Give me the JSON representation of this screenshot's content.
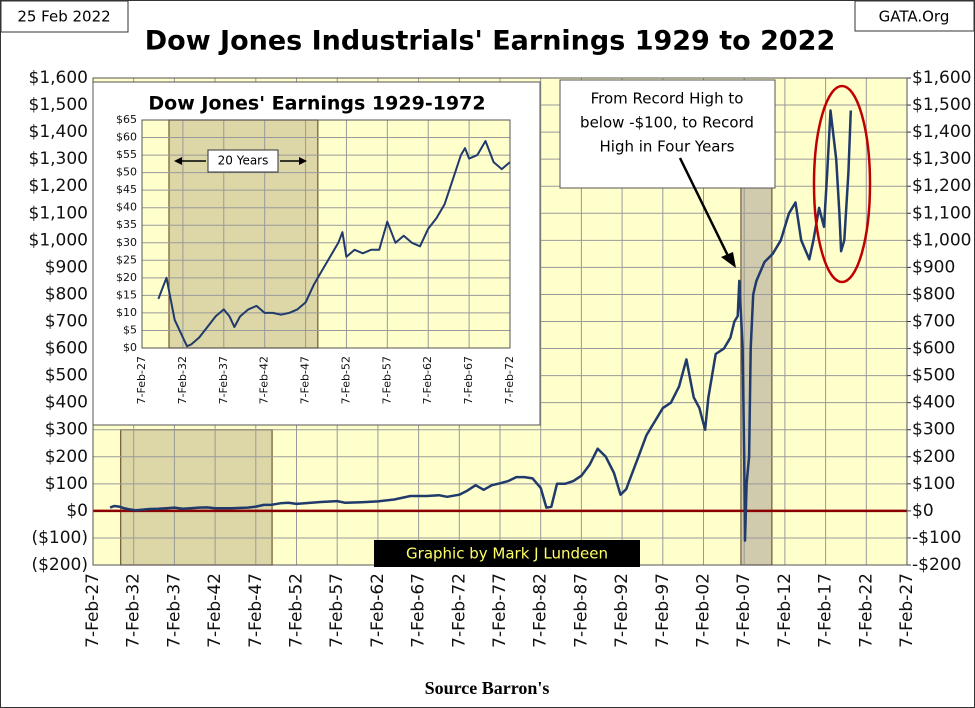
{
  "header": {
    "date": "25 Feb 2022",
    "site": "GATA.Org"
  },
  "footer": {
    "credit": "Graphic by Mark J Lundeen",
    "source": "Source Barron's"
  },
  "chart_data": [
    {
      "type": "line",
      "title": "Dow Jones Industrials' Earnings 1929 to 2022",
      "annotation": [
        "From Record High to",
        "below -$100, to Record",
        "High in Four Years"
      ],
      "x": [
        1929.1,
        1929.6,
        1930.2,
        1930.8,
        1931.5,
        1932.3,
        1933,
        1934,
        1935,
        1936,
        1937,
        1938,
        1939,
        1940,
        1941,
        1942,
        1944,
        1946,
        1947,
        1948,
        1949,
        1950,
        1951,
        1952,
        1953,
        1955,
        1957,
        1958,
        1960,
        1962,
        1964,
        1966,
        1968,
        1969.5,
        1970.5,
        1972,
        1973,
        1974,
        1975,
        1976,
        1977,
        1978,
        1979,
        1980,
        1981,
        1982,
        1982.7,
        1983.3,
        1984,
        1985,
        1986,
        1987,
        1988,
        1989,
        1990,
        1991,
        1991.8,
        1992.5,
        1993,
        1994,
        1995,
        1996,
        1997,
        1998,
        1999,
        1999.9,
        2000.8,
        2001.5,
        2002.2,
        2002.6,
        2003.5,
        2004.5,
        2005.3,
        2005.8,
        2006.2,
        2006.4,
        2006.8,
        2007.0,
        2007.1,
        2007.3,
        2007.6,
        2007.8,
        2008.1,
        2008.5,
        2009.5,
        2010.5,
        2011.5,
        2012.5,
        2013.3,
        2014,
        2015,
        2015.5,
        2016.2,
        2016.8,
        2017.2,
        2017.6,
        2018.3,
        2018.7,
        2018.9,
        2019.3,
        2019.8,
        2020.1
      ],
      "series": [
        {
          "color": "#1f3a6b",
          "values": [
            12,
            18,
            16,
            10,
            6,
            2,
            4,
            7,
            8,
            10,
            12,
            8,
            10,
            12,
            13,
            10,
            10,
            12,
            16,
            22,
            23,
            28,
            30,
            26,
            28,
            33,
            36,
            30,
            32,
            35,
            42,
            55,
            55,
            58,
            52,
            60,
            75,
            95,
            78,
            95,
            102,
            110,
            125,
            125,
            120,
            85,
            12,
            15,
            100,
            100,
            110,
            130,
            170,
            230,
            200,
            140,
            60,
            80,
            120,
            200,
            280,
            330,
            380,
            400,
            460,
            560,
            420,
            380,
            300,
            420,
            580,
            600,
            640,
            700,
            720,
            850,
            600,
            200,
            -110,
            100,
            200,
            600,
            800,
            850,
            920,
            950,
            1000,
            1100,
            1140,
            1000,
            930,
            1000,
            1120,
            1050,
            1250,
            1480,
            1300,
            1100,
            960,
            1000,
            1250,
            1480
          ]
        }
      ],
      "xlim": [
        1927,
        2027
      ],
      "xticks": [
        {
          "value": 1927,
          "label": "7-Feb-27"
        },
        {
          "value": 1932,
          "label": "7-Feb-32"
        },
        {
          "value": 1937,
          "label": "7-Feb-37"
        },
        {
          "value": 1942,
          "label": "7-Feb-42"
        },
        {
          "value": 1947,
          "label": "7-Feb-47"
        },
        {
          "value": 1952,
          "label": "7-Feb-52"
        },
        {
          "value": 1957,
          "label": "7-Feb-57"
        },
        {
          "value": 1962,
          "label": "7-Feb-62"
        },
        {
          "value": 1967,
          "label": "7-Feb-67"
        },
        {
          "value": 1972,
          "label": "7-Feb-72"
        },
        {
          "value": 1977,
          "label": "7-Feb-77"
        },
        {
          "value": 1982,
          "label": "7-Feb-82"
        },
        {
          "value": 1987,
          "label": "7-Feb-87"
        },
        {
          "value": 1992,
          "label": "7-Feb-92"
        },
        {
          "value": 1997,
          "label": "7-Feb-97"
        },
        {
          "value": 2002,
          "label": "7-Feb-02"
        },
        {
          "value": 2007,
          "label": "7-Feb-07"
        },
        {
          "value": 2012,
          "label": "7-Feb-12"
        },
        {
          "value": 2017,
          "label": "7-Feb-17"
        },
        {
          "value": 2022,
          "label": "7-Feb-22"
        },
        {
          "value": 2027,
          "label": "7-Feb-27"
        }
      ],
      "ylim": [
        -200,
        1600
      ],
      "yticks": [
        {
          "value": -200,
          "label": "($200)"
        },
        {
          "value": -100,
          "label": "($100)"
        },
        {
          "value": 0,
          "label": "$0"
        },
        {
          "value": 100,
          "label": "$100"
        },
        {
          "value": 200,
          "label": "$200"
        },
        {
          "value": 300,
          "label": "$300"
        },
        {
          "value": 400,
          "label": "$400"
        },
        {
          "value": 500,
          "label": "$500"
        },
        {
          "value": 600,
          "label": "$600"
        },
        {
          "value": 700,
          "label": "$700"
        },
        {
          "value": 800,
          "label": "$800"
        },
        {
          "value": 900,
          "label": "$900"
        },
        {
          "value": 1000,
          "label": "$1,000"
        },
        {
          "value": 1100,
          "label": "$1,100"
        },
        {
          "value": 1200,
          "label": "$1,200"
        },
        {
          "value": 1300,
          "label": "$1,300"
        },
        {
          "value": 1400,
          "label": "$1,400"
        },
        {
          "value": 1500,
          "label": "$1,500"
        },
        {
          "value": 1600,
          "label": "$1,600"
        }
      ],
      "y2lim": [
        -200,
        1600
      ],
      "y2ticks": [
        {
          "value": -200,
          "label": "-$200"
        },
        {
          "value": -100,
          "label": "-$100"
        },
        {
          "value": 0,
          "label": "$0"
        },
        {
          "value": 100,
          "label": "$100"
        },
        {
          "value": 200,
          "label": "$200"
        },
        {
          "value": 300,
          "label": "$300"
        },
        {
          "value": 400,
          "label": "$400"
        },
        {
          "value": 500,
          "label": "$500"
        },
        {
          "value": 600,
          "label": "$600"
        },
        {
          "value": 700,
          "label": "$700"
        },
        {
          "value": 800,
          "label": "$800"
        },
        {
          "value": 900,
          "label": "$900"
        },
        {
          "value": 1000,
          "label": "$1,000"
        },
        {
          "value": 1100,
          "label": "$1,100"
        },
        {
          "value": 1200,
          "label": "$1,200"
        },
        {
          "value": 1300,
          "label": "$1,300"
        },
        {
          "value": 1400,
          "label": "$1,400"
        },
        {
          "value": 1500,
          "label": "$1,500"
        },
        {
          "value": 1600,
          "label": "$1,600"
        }
      ],
      "grid": true,
      "background": "#ffffcc",
      "highlights": [
        {
          "x": [
            1930.4,
            1949
          ],
          "y": [
            -200,
            300
          ],
          "color": "#d8cfa0"
        },
        {
          "x": [
            2006.6,
            2010.4
          ],
          "y": [
            -200,
            1300
          ],
          "color": "#c8c3a8"
        }
      ],
      "reference_line": 0,
      "reference_color": "#8b0000"
    },
    {
      "type": "line",
      "title": "Dow Jones' Earnings 1929-1972",
      "highlight_label": "20 Years",
      "x": [
        1929,
        1929.5,
        1930,
        1930.5,
        1931,
        1932,
        1932.5,
        1933,
        1934,
        1935,
        1936,
        1937,
        1937.7,
        1938.3,
        1939,
        1940,
        1941,
        1942,
        1943,
        1944,
        1945,
        1946,
        1947,
        1948,
        1949,
        1950,
        1951,
        1951.5,
        1952,
        1953,
        1954,
        1955,
        1956,
        1957,
        1958,
        1959,
        1960,
        1961,
        1962,
        1963,
        1964,
        1965,
        1966,
        1966.5,
        1967,
        1968,
        1969,
        1970,
        1971,
        1972
      ],
      "series": [
        {
          "color": "#1f3a6b",
          "values": [
            14,
            17,
            20,
            14,
            8,
            3,
            0.5,
            1,
            3,
            6,
            9,
            11,
            9,
            6,
            9,
            11,
            12,
            10,
            10,
            9.5,
            10,
            11,
            13,
            18,
            22,
            26,
            30,
            33,
            26,
            28,
            27,
            28,
            28,
            36,
            30,
            32,
            30,
            29,
            34,
            37,
            41,
            48,
            55,
            57,
            54,
            55,
            59,
            53,
            51,
            53
          ]
        }
      ],
      "xlim": [
        1927,
        1972
      ],
      "xticks": [
        {
          "value": 1927,
          "label": "7-Feb-27"
        },
        {
          "value": 1932,
          "label": "7-Feb-32"
        },
        {
          "value": 1937,
          "label": "7-Feb-37"
        },
        {
          "value": 1942,
          "label": "7-Feb-42"
        },
        {
          "value": 1947,
          "label": "7-Feb-47"
        },
        {
          "value": 1952,
          "label": "7-Feb-52"
        },
        {
          "value": 1957,
          "label": "7-Feb-57"
        },
        {
          "value": 1962,
          "label": "7-Feb-62"
        },
        {
          "value": 1967,
          "label": "7-Feb-67"
        },
        {
          "value": 1972,
          "label": "7-Feb-72"
        }
      ],
      "ylim": [
        0,
        65
      ],
      "yticks": [
        {
          "value": 0,
          "label": "$0"
        },
        {
          "value": 5,
          "label": "$5"
        },
        {
          "value": 10,
          "label": "$10"
        },
        {
          "value": 15,
          "label": "$15"
        },
        {
          "value": 20,
          "label": "$20"
        },
        {
          "value": 25,
          "label": "$25"
        },
        {
          "value": 30,
          "label": "$30"
        },
        {
          "value": 35,
          "label": "$35"
        },
        {
          "value": 40,
          "label": "$40"
        },
        {
          "value": 45,
          "label": "$45"
        },
        {
          "value": 50,
          "label": "$50"
        },
        {
          "value": 55,
          "label": "$55"
        },
        {
          "value": 60,
          "label": "$60"
        },
        {
          "value": 65,
          "label": "$65"
        }
      ],
      "grid": true,
      "background": "#ffffcc",
      "highlights": [
        {
          "x": [
            1930.3,
            1948.5
          ],
          "y": [
            0,
            65
          ],
          "color": "#d8cfa0"
        }
      ]
    }
  ]
}
